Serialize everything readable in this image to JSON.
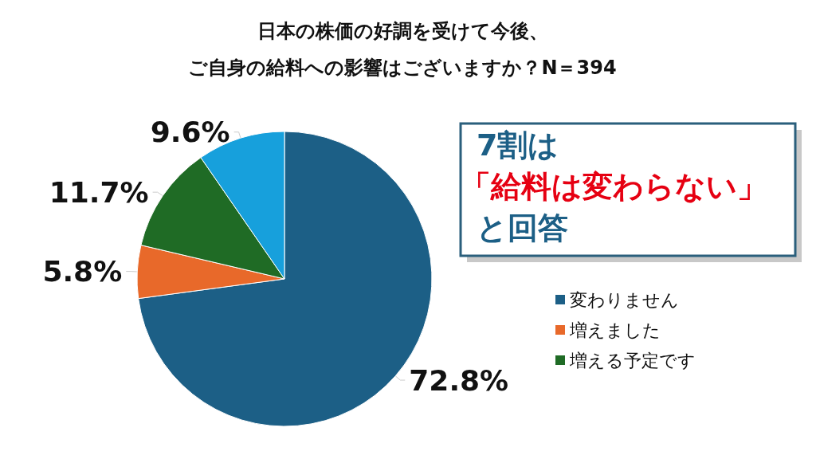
{
  "chart_data": {
    "type": "pie",
    "title": "日本の株価の好調を受けて今後、",
    "subtitle": "ご自身の給料への影響はございますか？N＝394",
    "categories": [
      "変わりません",
      "増えました",
      "増える予定です",
      null
    ],
    "values": [
      72.8,
      5.8,
      11.7,
      9.6
    ],
    "value_labels": [
      "72.8%",
      "5.8%",
      "11.7%",
      "9.6%"
    ],
    "colors": [
      "#1c5f86",
      "#e8692a",
      "#1f6b25",
      "#17a0dc"
    ],
    "legend": "right",
    "annotations": [
      "7割は",
      "「給料は変わらない」",
      "と回答"
    ]
  }
}
